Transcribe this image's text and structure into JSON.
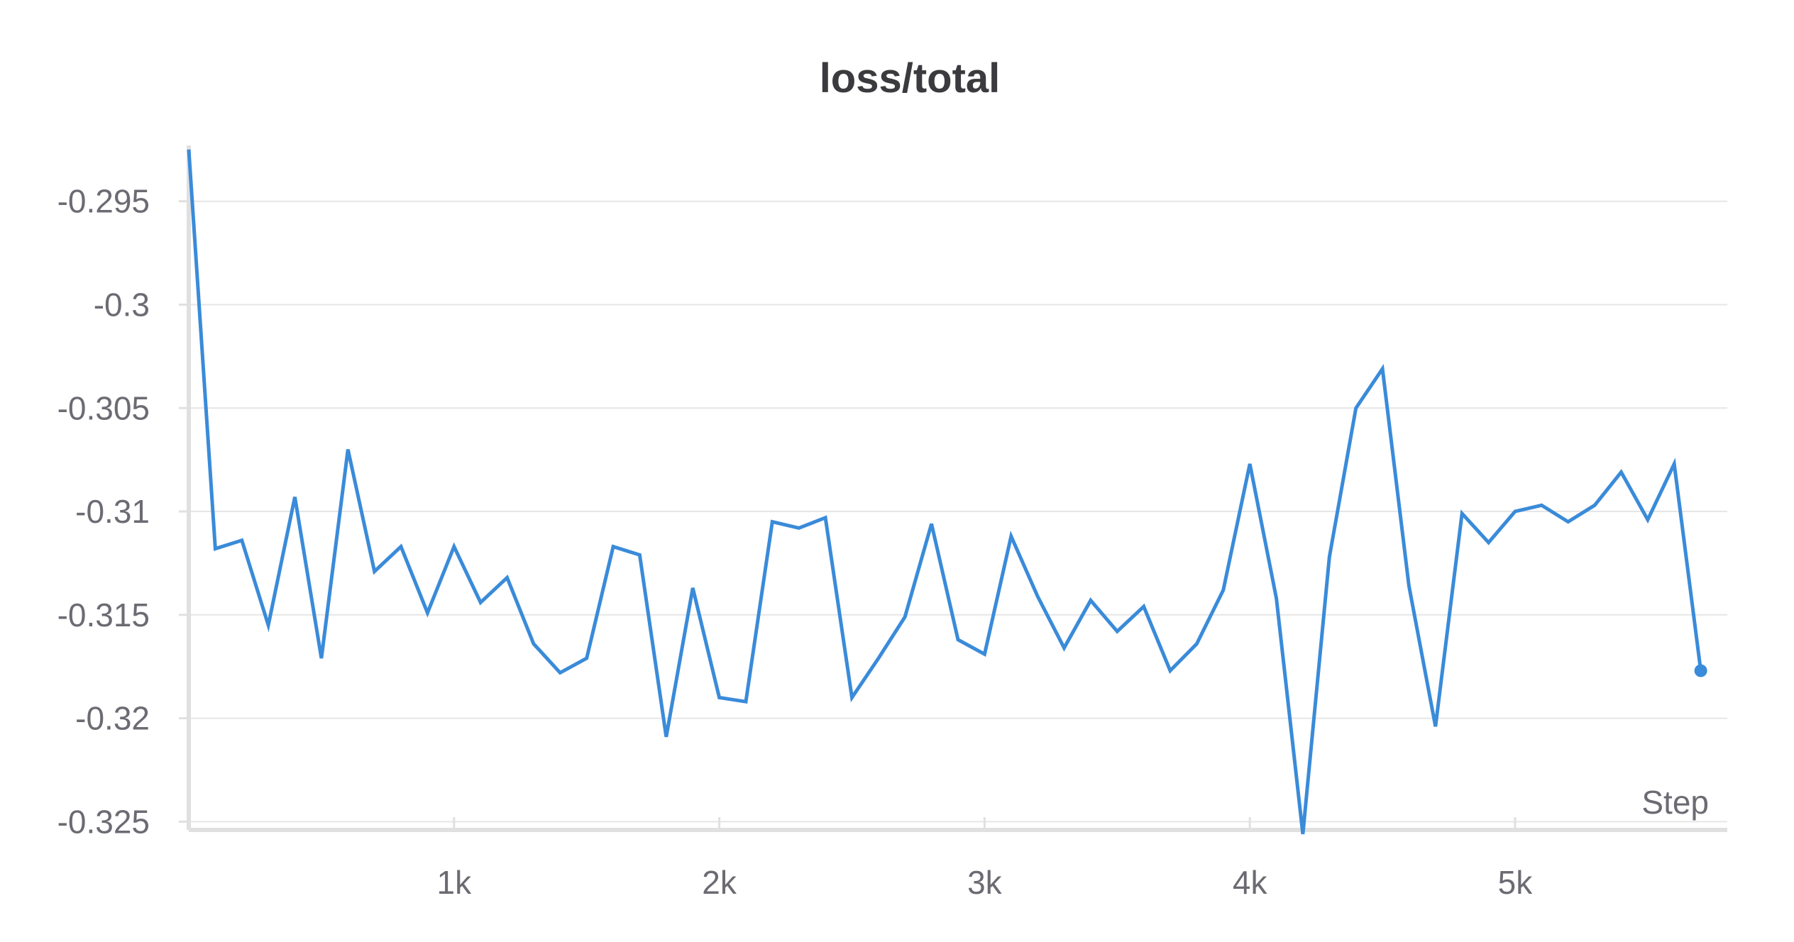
{
  "chart_data": {
    "type": "line",
    "title": "loss/total",
    "xlabel": "Step",
    "ylabel": "",
    "xlim": [
      0,
      5800
    ],
    "ylim": [
      -0.3254,
      -0.2923
    ],
    "x_ticks": [
      1000,
      2000,
      3000,
      4000,
      5000
    ],
    "x_tick_labels": [
      "1k",
      "2k",
      "3k",
      "4k",
      "5k"
    ],
    "y_ticks": [
      -0.295,
      -0.3,
      -0.305,
      -0.31,
      -0.315,
      -0.32,
      -0.325
    ],
    "y_tick_labels": [
      "-0.295",
      "-0.3",
      "-0.305",
      "-0.31",
      "-0.315",
      "-0.32",
      "-0.325"
    ],
    "grid": true,
    "legend": "none",
    "colors": {
      "series": "#3a8bd9"
    },
    "series": [
      {
        "x": [
          0,
          100,
          200,
          300,
          400,
          500,
          600,
          700,
          800,
          900,
          1000,
          1100,
          1200,
          1300,
          1400,
          1500,
          1600,
          1700,
          1800,
          1900,
          2000,
          2100,
          2200,
          2300,
          2400,
          2500,
          2600,
          2700,
          2800,
          2900,
          3000,
          3100,
          3200,
          3300,
          3400,
          3500,
          3600,
          3700,
          3800,
          3900,
          4000,
          4100,
          4200,
          4300,
          4400,
          4500,
          4600,
          4700,
          4800,
          4900,
          5000,
          5100,
          5200,
          5300,
          5400,
          5500,
          5600,
          5700
        ],
        "values": [
          -0.2925,
          -0.3118,
          -0.3114,
          -0.3155,
          -0.3093,
          -0.3171,
          -0.307,
          -0.3129,
          -0.3117,
          -0.3149,
          -0.3117,
          -0.3144,
          -0.3132,
          -0.3164,
          -0.3178,
          -0.3171,
          -0.3117,
          -0.3121,
          -0.3209,
          -0.3137,
          -0.319,
          -0.3192,
          -0.3105,
          -0.3108,
          -0.3103,
          -0.319,
          -0.3171,
          -0.3151,
          -0.3106,
          -0.3162,
          -0.3169,
          -0.3112,
          -0.3141,
          -0.3166,
          -0.3143,
          -0.3158,
          -0.3146,
          -0.3177,
          -0.3164,
          -0.3138,
          -0.3077,
          -0.3142,
          -0.3256,
          -0.3122,
          -0.305,
          -0.3031,
          -0.3136,
          -0.3204,
          -0.3101,
          -0.3115,
          -0.31,
          -0.3097,
          -0.3105,
          -0.3097,
          -0.3081,
          -0.3104,
          -0.3077,
          -0.3177
        ]
      }
    ]
  }
}
